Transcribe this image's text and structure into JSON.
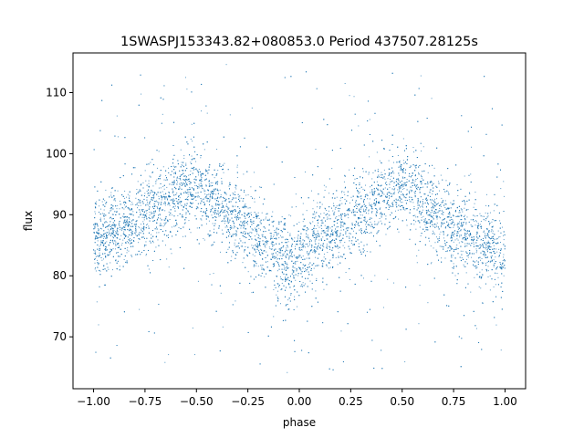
{
  "chart_data": {
    "type": "scatter",
    "title": "1SWASPJ153343.82+080853.0 Period 437507.28125s",
    "xlabel": "phase",
    "ylabel": "flux",
    "xlim": [
      -1.1,
      1.1
    ],
    "ylim": [
      61.5,
      116.5
    ],
    "xticks": [
      -1.0,
      -0.75,
      -0.5,
      -0.25,
      0.0,
      0.25,
      0.5,
      0.75,
      1.0
    ],
    "xtick_labels": [
      "−1.00",
      "−0.75",
      "−0.50",
      "−0.25",
      "0.00",
      "0.25",
      "0.50",
      "0.75",
      "1.00"
    ],
    "yticks": [
      70,
      80,
      90,
      100,
      110
    ],
    "ytick_labels": [
      "70",
      "80",
      "90",
      "100",
      "110"
    ],
    "grid": false,
    "marker_color": "#1f77b4",
    "trend": {
      "description_points_phase": [
        -1.0,
        -0.9,
        -0.75,
        -0.6,
        -0.5,
        -0.4,
        -0.25,
        -0.1,
        -0.05,
        0.0,
        0.1,
        0.25,
        0.4,
        0.5,
        0.6,
        0.75,
        0.9,
        1.0
      ],
      "description_points_flux": [
        85.5,
        87.5,
        90.0,
        93.5,
        94.5,
        92.0,
        87.5,
        83.5,
        82.0,
        82.5,
        86.0,
        89.5,
        93.5,
        94.5,
        91.5,
        87.5,
        85.0,
        84.0
      ]
    },
    "scatter_band": 3.2
  }
}
